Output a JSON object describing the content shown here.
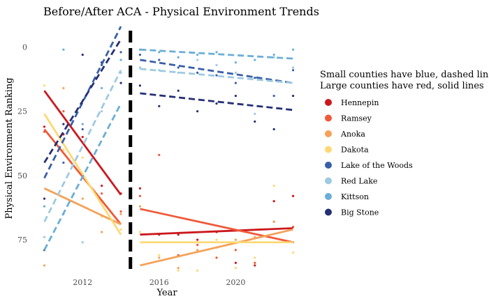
{
  "chart_data": {
    "type": "scatter",
    "title": "Before/After ACA - Physical Environment Trends",
    "xlabel": "Year",
    "ylabel": "Physical Environment Ranking",
    "xlim": [
      2009.8,
      2023.6
    ],
    "ylim": [
      0,
      90
    ],
    "y_reversed": true,
    "x_ticks": [
      2012,
      2016,
      2020
    ],
    "y_ticks": [
      0,
      25,
      50,
      75
    ],
    "grid": false,
    "legend_position": "right",
    "legend_title": [
      "Small counties have blue, dashed lines",
      "Large counties have red, solid lines"
    ],
    "cutoff": {
      "x": 2014.5,
      "style": "dashed-vertical",
      "color": "#000000"
    },
    "series": [
      {
        "name": "Hennepin",
        "color": "#cb181d",
        "style": "solid",
        "points": [
          [
            2010,
            31
          ],
          [
            2011,
            34
          ],
          [
            2012,
            35
          ],
          [
            2013,
            54
          ],
          [
            2014,
            57
          ],
          [
            2015,
            55
          ],
          [
            2016,
            73
          ],
          [
            2017,
            73
          ],
          [
            2018,
            75
          ],
          [
            2019,
            72
          ],
          [
            2020,
            84
          ],
          [
            2021,
            85
          ],
          [
            2022,
            60
          ],
          [
            2023,
            58
          ]
        ],
        "trend_pre": [
          [
            2010,
            17
          ],
          [
            2014,
            57.5
          ]
        ],
        "trend_post": [
          [
            2015,
            73
          ],
          [
            2023,
            70.5
          ]
        ]
      },
      {
        "name": "Ramsey",
        "color": "#ef5a3a",
        "style": "solid",
        "points": [
          [
            2010,
            33
          ],
          [
            2011,
            25
          ],
          [
            2012,
            50
          ],
          [
            2013,
            57
          ],
          [
            2014,
            64
          ],
          [
            2015,
            58
          ],
          [
            2016,
            42
          ],
          [
            2017,
            81
          ],
          [
            2018,
            77
          ],
          [
            2019,
            82
          ],
          [
            2020,
            79
          ],
          [
            2021,
            84
          ],
          [
            2022,
            68
          ],
          [
            2023,
            70
          ]
        ],
        "trend_pre": [
          [
            2010,
            32
          ],
          [
            2014,
            69
          ]
        ],
        "trend_post": [
          [
            2015,
            63
          ],
          [
            2023,
            76
          ]
        ]
      },
      {
        "name": "Anoka",
        "color": "#f4a259",
        "style": "solid",
        "points": [
          [
            2010,
            85
          ],
          [
            2011,
            16
          ],
          [
            2012,
            59
          ],
          [
            2013,
            72
          ],
          [
            2014,
            65
          ],
          [
            2015,
            62
          ],
          [
            2016,
            82
          ],
          [
            2017,
            86
          ],
          [
            2018,
            79
          ],
          [
            2019,
            78
          ],
          [
            2020,
            75
          ],
          [
            2021,
            74
          ],
          [
            2022,
            68
          ],
          [
            2023,
            76
          ]
        ],
        "trend_pre": [
          [
            2010,
            55
          ],
          [
            2014,
            69
          ]
        ],
        "trend_post": [
          [
            2015,
            85
          ],
          [
            2023,
            71
          ]
        ]
      },
      {
        "name": "Dakota",
        "color": "#fdd975",
        "style": "solid",
        "points": [
          [
            2010,
            15
          ],
          [
            2011,
            40
          ],
          [
            2012,
            43
          ],
          [
            2013,
            66
          ],
          [
            2014,
            71
          ],
          [
            2015,
            72
          ],
          [
            2016,
            81
          ],
          [
            2017,
            87
          ],
          [
            2018,
            87
          ],
          [
            2019,
            75
          ],
          [
            2020,
            86
          ],
          [
            2021,
            82
          ],
          [
            2022,
            54
          ],
          [
            2023,
            80
          ]
        ],
        "trend_pre": [
          [
            2010,
            26
          ],
          [
            2014,
            73
          ]
        ],
        "trend_post": [
          [
            2015,
            76
          ],
          [
            2023,
            76
          ]
        ]
      },
      {
        "name": "Lake of the Woods",
        "color": "#3a5fa8",
        "style": "dashed",
        "points": [
          [
            2010,
            79
          ],
          [
            2011,
            45
          ],
          [
            2012,
            32
          ],
          [
            2013,
            7
          ],
          [
            2014,
            2
          ],
          [
            2015,
            3
          ],
          [
            2016,
            5
          ],
          [
            2017,
            8
          ],
          [
            2018,
            10
          ],
          [
            2019,
            11
          ],
          [
            2020,
            14
          ],
          [
            2021,
            12
          ],
          [
            2022,
            19
          ],
          [
            2023,
            9
          ]
        ],
        "trend_pre": [
          [
            2010,
            51
          ],
          [
            2014,
            -8
          ]
        ],
        "trend_post": [
          [
            2015,
            5
          ],
          [
            2023,
            14
          ]
        ]
      },
      {
        "name": "Red Lake",
        "color": "#9ecae1",
        "style": "dashed",
        "points": [
          [
            2010,
            74
          ],
          [
            2011,
            65
          ],
          [
            2012,
            76
          ],
          [
            2013,
            25
          ],
          [
            2014,
            10
          ],
          [
            2015,
            8
          ],
          [
            2016,
            9
          ],
          [
            2017,
            10
          ],
          [
            2018,
            5
          ],
          [
            2019,
            7
          ],
          [
            2020,
            10
          ],
          [
            2021,
            26
          ],
          [
            2022,
            4
          ],
          [
            2023,
            8
          ]
        ],
        "trend_pre": [
          [
            2010,
            68
          ],
          [
            2014,
            9
          ]
        ],
        "trend_post": [
          [
            2015,
            8.5
          ],
          [
            2023,
            14
          ]
        ]
      },
      {
        "name": "Kittson",
        "color": "#6baed6",
        "style": "dashed",
        "points": [
          [
            2010,
            62
          ],
          [
            2011,
            1
          ],
          [
            2012,
            30
          ],
          [
            2013,
            16
          ],
          [
            2014,
            5
          ],
          [
            2015,
            1
          ],
          [
            2016,
            2
          ],
          [
            2017,
            4
          ],
          [
            2018,
            3
          ],
          [
            2019,
            2
          ],
          [
            2020,
            6
          ],
          [
            2021,
            5
          ],
          [
            2022,
            3
          ],
          [
            2023,
            1
          ]
        ],
        "trend_pre": [
          [
            2010,
            79
          ],
          [
            2014,
            22
          ]
        ],
        "trend_post": [
          [
            2015,
            1
          ],
          [
            2023,
            4.5
          ]
        ]
      },
      {
        "name": "Big Stone",
        "color": "#252f75",
        "style": "dashed",
        "points": [
          [
            2010,
            59
          ],
          [
            2011,
            30
          ],
          [
            2012,
            3
          ],
          [
            2013,
            6
          ],
          [
            2014,
            14
          ],
          [
            2015,
            15
          ],
          [
            2016,
            23
          ],
          [
            2017,
            17
          ],
          [
            2018,
            25
          ],
          [
            2019,
            22
          ],
          [
            2020,
            19
          ],
          [
            2021,
            29
          ],
          [
            2022,
            32
          ],
          [
            2023,
            19
          ]
        ],
        "trend_pre": [
          [
            2010,
            45
          ],
          [
            2014,
            -3
          ]
        ],
        "trend_post": [
          [
            2015,
            18
          ],
          [
            2023,
            24.5
          ]
        ]
      }
    ]
  }
}
